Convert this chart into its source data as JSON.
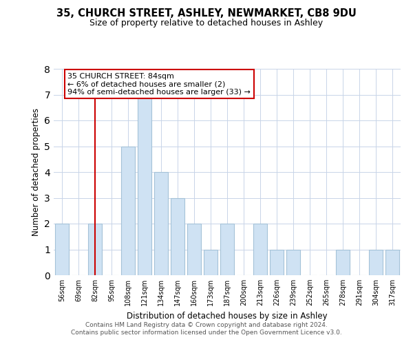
{
  "title1": "35, CHURCH STREET, ASHLEY, NEWMARKET, CB8 9DU",
  "title2": "Size of property relative to detached houses in Ashley",
  "xlabel": "Distribution of detached houses by size in Ashley",
  "ylabel": "Number of detached properties",
  "categories": [
    "56sqm",
    "69sqm",
    "82sqm",
    "95sqm",
    "108sqm",
    "121sqm",
    "134sqm",
    "147sqm",
    "160sqm",
    "173sqm",
    "187sqm",
    "200sqm",
    "213sqm",
    "226sqm",
    "239sqm",
    "252sqm",
    "265sqm",
    "278sqm",
    "291sqm",
    "304sqm",
    "317sqm"
  ],
  "values": [
    2,
    0,
    2,
    0,
    5,
    7,
    4,
    3,
    2,
    1,
    2,
    0,
    2,
    1,
    1,
    0,
    0,
    1,
    0,
    1,
    1
  ],
  "bar_color": "#cfe2f3",
  "bar_edge_color": "#a4c2d8",
  "highlight_bar_index": 2,
  "highlight_color": "#cc0000",
  "annotation_title": "35 CHURCH STREET: 84sqm",
  "annotation_line1": "← 6% of detached houses are smaller (2)",
  "annotation_line2": "94% of semi-detached houses are larger (33) →",
  "annotation_box_color": "#ffffff",
  "annotation_box_edge": "#cc0000",
  "ylim": [
    0,
    8
  ],
  "yticks": [
    0,
    1,
    2,
    3,
    4,
    5,
    6,
    7,
    8
  ],
  "footer1": "Contains HM Land Registry data © Crown copyright and database right 2024.",
  "footer2": "Contains public sector information licensed under the Open Government Licence v3.0.",
  "background_color": "#ffffff",
  "grid_color": "#c8d4e8"
}
